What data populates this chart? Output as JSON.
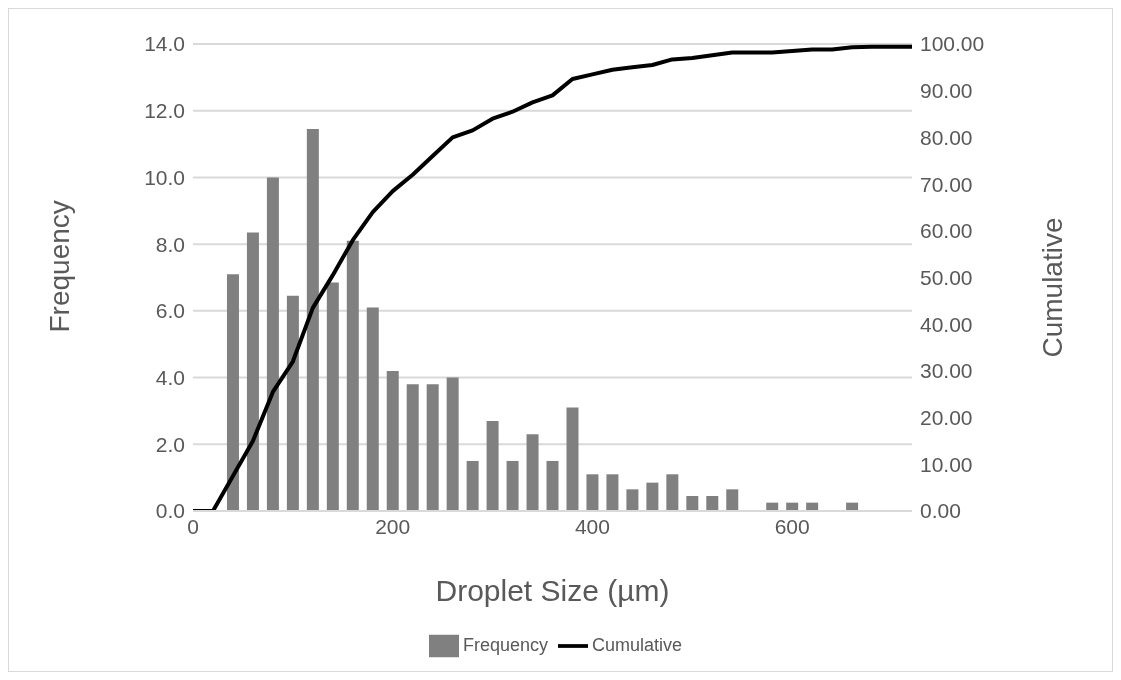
{
  "chart_data": {
    "type": "bar",
    "xlabel": "Droplet Size (µm)",
    "ylabel": "Frequency",
    "y2label": "Cumulative",
    "xlim": [
      0,
      720
    ],
    "xticks": [
      0,
      200,
      400,
      600
    ],
    "ylim": [
      0,
      14
    ],
    "yticks": [
      {
        "value": 0,
        "label": "0.0"
      },
      {
        "value": 2,
        "label": "2.0"
      },
      {
        "value": 4,
        "label": "4.0"
      },
      {
        "value": 6,
        "label": "6.0"
      },
      {
        "value": 8,
        "label": "8.0"
      },
      {
        "value": 10,
        "label": "10.0"
      },
      {
        "value": 12,
        "label": "12.0"
      },
      {
        "value": 14,
        "label": "14.0"
      }
    ],
    "y2lim": [
      0,
      100
    ],
    "y2ticks": [
      {
        "value": 0,
        "label": "0.00"
      },
      {
        "value": 10,
        "label": "10.00"
      },
      {
        "value": 20,
        "label": "20.00"
      },
      {
        "value": 30,
        "label": "30.00"
      },
      {
        "value": 40,
        "label": "40.00"
      },
      {
        "value": 50,
        "label": "50.00"
      },
      {
        "value": 60,
        "label": "60.00"
      },
      {
        "value": 70,
        "label": "70.00"
      },
      {
        "value": 80,
        "label": "80.00"
      },
      {
        "value": 90,
        "label": "90.00"
      },
      {
        "value": 100,
        "label": "100.00"
      }
    ],
    "grid": "y",
    "legend": "bottom",
    "marker": "none",
    "line_style": "solid",
    "series": [
      {
        "name": "Frequency",
        "color": "#808080",
        "x": [
          40,
          60,
          80,
          100,
          120,
          140,
          160,
          180,
          200,
          220,
          240,
          260,
          280,
          300,
          320,
          340,
          360,
          380,
          400,
          420,
          440,
          460,
          480,
          500,
          520,
          540,
          580,
          600,
          620,
          660
        ],
        "values": [
          7.1,
          8.35,
          10.0,
          6.45,
          11.45,
          6.85,
          8.1,
          6.1,
          4.2,
          3.8,
          3.8,
          4.0,
          1.5,
          2.7,
          1.5,
          2.3,
          1.5,
          3.1,
          1.1,
          1.1,
          0.65,
          0.85,
          1.1,
          0.45,
          0.45,
          0.65,
          0.25,
          0.25,
          0.25,
          0.25
        ]
      },
      {
        "name": "Cumulative",
        "type": "line",
        "axis": "y2",
        "color": "#000000",
        "x": [
          0,
          20,
          40,
          60,
          80,
          100,
          120,
          140,
          160,
          180,
          200,
          220,
          240,
          260,
          280,
          300,
          320,
          340,
          360,
          380,
          400,
          420,
          440,
          460,
          480,
          500,
          520,
          540,
          560,
          580,
          600,
          620,
          640,
          660,
          680,
          700,
          720
        ],
        "values": [
          0,
          0,
          7.5,
          15,
          25.5,
          32,
          43.5,
          50.5,
          58,
          64,
          68.5,
          72,
          76,
          80,
          81.5,
          84,
          85.5,
          87.5,
          89,
          92.5,
          93.5,
          94.5,
          95,
          95.5,
          96.7,
          97,
          97.6,
          98.2,
          98.2,
          98.2,
          98.5,
          98.8,
          98.8,
          99.3,
          99.4,
          99.4,
          99.4
        ]
      }
    ]
  }
}
